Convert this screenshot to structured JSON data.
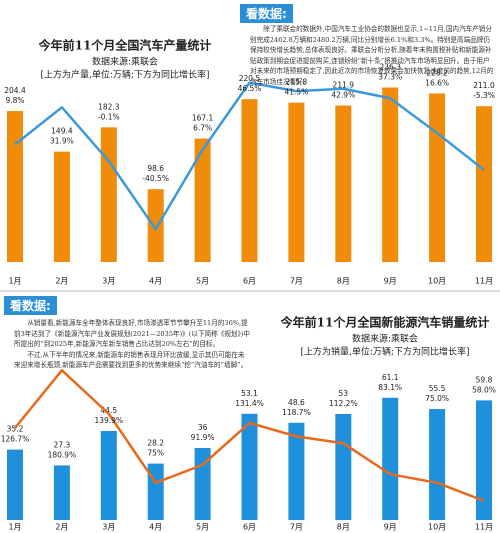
{
  "articles": [
    {
      "heading": "看数据:",
      "paragraphs": [
        "除了乘联会的数据外,中国汽车工业协会的数据也显示,1~11月,国内汽车产销分别完成2462.8万辆和2480.2万辆,同比分别增长6.1%和3.3%。特别是高端品牌仍保持较快增长趋势,总体表现良好。乘联会分析分析,随着年末购置税补贴和新能源补贴政策到期会促进提前购买,连锁纷纷“新十条”将推动汽车市场明显回升。由于用户对未来的市场预期稳定了,因此近次的市场恢复效果会加快恢复速度前的趋势,12月的汽车市场佳况看好。"
      ]
    },
    {
      "heading": "看数据:",
      "paragraphs": [
        "从销量看,新能源车全年整体表现良好,市场渗透率节节攀升至11月的36%,提前3年达到了《新能源汽车产业发展规划(2021—2035年)》(以下简称《规划》)中所提出的“到2025年,新能源汽车新车销售占比达到20%左右”的目标。",
        "不过,从下半年的情况来,新能源车的销售表现月环比放缓,显示其仍可能在未来迎来增长瓶颈,新能源车产品需要找到更多的优势来继续“挖”汽油车的“墙脚”。"
      ]
    }
  ],
  "chart_data": [
    {
      "type": "bar",
      "title": "今年前11个月全国汽车产量统计",
      "subtitle": "数据来源:乘联会",
      "note": "[上方为产量,单位:万辆;下方为同比增长率]",
      "categories": [
        "1月",
        "2月",
        "3月",
        "4月",
        "5月",
        "6月",
        "7月",
        "8月",
        "9月",
        "10月",
        "11月"
      ],
      "ylim": [
        0,
        260
      ],
      "y2lim": [
        -60,
        60
      ],
      "series": [
        {
          "type": "bar",
          "color": "#f08c0a",
          "values": [
            204.4,
            149.4,
            182.3,
            98.6,
            167.1,
            220.5,
            215.8,
            211.9,
            236.3,
            228.2,
            211.0
          ],
          "value_labels": [
            "204.4",
            "149.4",
            "182.3",
            "98.6",
            "167.1",
            "220.5",
            "215.8",
            "211.9",
            "236.3",
            "228.2",
            "211.0"
          ]
        },
        {
          "type": "line",
          "axis": "y2",
          "color": "#3a9ad9",
          "values": [
            9.8,
            31.9,
            -0.1,
            -40.5,
            6.7,
            46.5,
            41.5,
            42.9,
            37.3,
            16.6,
            -5.3
          ],
          "value_labels": [
            "9.8%",
            "31.9%",
            "-0.1%",
            "-40.5%",
            "6.7%",
            "46.5%",
            "41.5%",
            "42.9%",
            "37.3%",
            "16.6%",
            "-5.3%"
          ]
        }
      ]
    },
    {
      "type": "bar",
      "title": "今年前11个月全国新能源汽车销量统计",
      "subtitle": "数据来源:乘联会",
      "note": "[上方为销量,单位:万辆;下方为同比增长率]",
      "categories": [
        "1月",
        "2月",
        "3月",
        "4月",
        "5月",
        "6月",
        "7月",
        "8月",
        "9月",
        "10月",
        "11月"
      ],
      "ylim": [
        0,
        70
      ],
      "y2lim": [
        40,
        200
      ],
      "series": [
        {
          "type": "bar",
          "color": "#1e90dc",
          "values": [
            35.2,
            27.3,
            44.5,
            28.2,
            36,
            53.1,
            48.6,
            53,
            61.1,
            55.5,
            59.8
          ],
          "value_labels": [
            "35.2",
            "27.3",
            "44.5",
            "28.2",
            "36",
            "53.1",
            "48.6",
            "53",
            "61.1",
            "55.5",
            "59.8"
          ]
        },
        {
          "type": "line",
          "axis": "y2",
          "color": "#e8691c",
          "values": [
            126.7,
            180.9,
            139.9,
            75,
            91.9,
            131.4,
            118.7,
            112.2,
            83.1,
            75.0,
            58.0
          ],
          "value_labels": [
            "126.7%",
            "180.9%",
            "139.9%",
            "75%",
            "91.9%",
            "131.4%",
            "118.7%",
            "112.2%",
            "83.1%",
            "75.0%",
            "58.0%"
          ]
        }
      ]
    }
  ]
}
